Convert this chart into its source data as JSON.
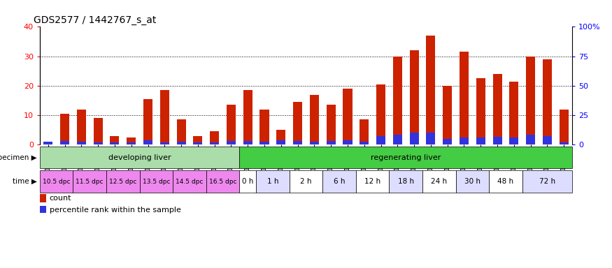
{
  "title": "GDS2577 / 1442767_s_at",
  "samples": [
    "GSM161128",
    "GSM161129",
    "GSM161130",
    "GSM161131",
    "GSM161132",
    "GSM161133",
    "GSM161134",
    "GSM161135",
    "GSM161136",
    "GSM161137",
    "GSM161138",
    "GSM161139",
    "GSM161108",
    "GSM161109",
    "GSM161110",
    "GSM161111",
    "GSM161112",
    "GSM161113",
    "GSM161114",
    "GSM161115",
    "GSM161116",
    "GSM161117",
    "GSM161118",
    "GSM161119",
    "GSM161120",
    "GSM161121",
    "GSM161122",
    "GSM161123",
    "GSM161124",
    "GSM161125",
    "GSM161126",
    "GSM161127"
  ],
  "count": [
    1,
    10.5,
    12,
    9,
    3,
    2.5,
    15.5,
    18.5,
    8.5,
    3,
    4.5,
    13.5,
    18.5,
    12,
    5,
    14.5,
    17,
    13.5,
    19,
    8.5,
    20.5,
    30,
    32,
    37,
    20,
    31.5,
    22.5,
    24,
    21.5,
    30,
    29,
    12
  ],
  "percentile": [
    1.0,
    1.2,
    1.0,
    0.8,
    0.8,
    0.8,
    1.5,
    0.8,
    1.0,
    0.8,
    0.8,
    1.2,
    1.2,
    1.0,
    1.5,
    1.2,
    1.0,
    1.2,
    1.5,
    1.0,
    3.0,
    3.5,
    4.0,
    4.0,
    2.0,
    2.5,
    2.5,
    2.8,
    2.5,
    3.5,
    3.0,
    0.8
  ],
  "ylim_left": [
    0,
    40
  ],
  "ylim_right": [
    0,
    100
  ],
  "yticks_left": [
    0,
    10,
    20,
    30,
    40
  ],
  "yticks_right": [
    0,
    25,
    50,
    75,
    100
  ],
  "bar_color_red": "#CC2200",
  "bar_color_blue": "#3333DD",
  "bg_color": "#FFFFFF",
  "specimen_groups": [
    {
      "label": "developing liver",
      "start": 0,
      "end": 12,
      "color": "#AADDAA"
    },
    {
      "label": "regenerating liver",
      "start": 12,
      "end": 32,
      "color": "#44CC44"
    }
  ],
  "time_groups": [
    {
      "label": "10.5 dpc",
      "start": 0,
      "end": 2,
      "color": "#EE88EE"
    },
    {
      "label": "11.5 dpc",
      "start": 2,
      "end": 4,
      "color": "#EE88EE"
    },
    {
      "label": "12.5 dpc",
      "start": 4,
      "end": 6,
      "color": "#EE88EE"
    },
    {
      "label": "13.5 dpc",
      "start": 6,
      "end": 8,
      "color": "#EE88EE"
    },
    {
      "label": "14.5 dpc",
      "start": 8,
      "end": 10,
      "color": "#EE88EE"
    },
    {
      "label": "16.5 dpc",
      "start": 10,
      "end": 12,
      "color": "#EE88EE"
    },
    {
      "label": "0 h",
      "start": 12,
      "end": 13,
      "color": "#FFFFFF"
    },
    {
      "label": "1 h",
      "start": 13,
      "end": 15,
      "color": "#DDDDFF"
    },
    {
      "label": "2 h",
      "start": 15,
      "end": 17,
      "color": "#FFFFFF"
    },
    {
      "label": "6 h",
      "start": 17,
      "end": 19,
      "color": "#DDDDFF"
    },
    {
      "label": "12 h",
      "start": 19,
      "end": 21,
      "color": "#FFFFFF"
    },
    {
      "label": "18 h",
      "start": 21,
      "end": 23,
      "color": "#DDDDFF"
    },
    {
      "label": "24 h",
      "start": 23,
      "end": 25,
      "color": "#FFFFFF"
    },
    {
      "label": "30 h",
      "start": 25,
      "end": 27,
      "color": "#DDDDFF"
    },
    {
      "label": "48 h",
      "start": 27,
      "end": 29,
      "color": "#FFFFFF"
    },
    {
      "label": "72 h",
      "start": 29,
      "end": 32,
      "color": "#DDDDFF"
    }
  ],
  "legend_count_label": "count",
  "legend_pct_label": "percentile rank within the sample",
  "title_fontsize": 10,
  "tick_fontsize": 6,
  "bar_width": 0.55
}
